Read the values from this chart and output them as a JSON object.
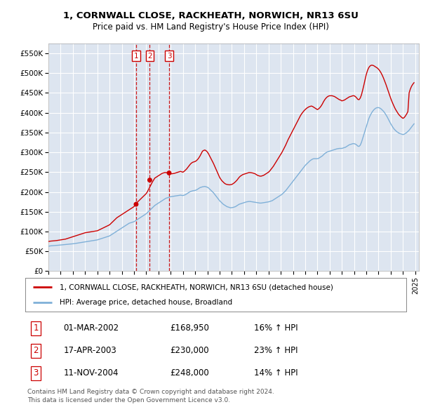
{
  "title_line1": "1, CORNWALL CLOSE, RACKHEATH, NORWICH, NR13 6SU",
  "title_line2": "Price paid vs. HM Land Registry's House Price Index (HPI)",
  "legend_label_red": "1, CORNWALL CLOSE, RACKHEATH, NORWICH, NR13 6SU (detached house)",
  "legend_label_blue": "HPI: Average price, detached house, Broadland",
  "footer_line1": "Contains HM Land Registry data © Crown copyright and database right 2024.",
  "footer_line2": "This data is licensed under the Open Government Licence v3.0.",
  "transactions": [
    {
      "num": 1,
      "date": "01-MAR-2002",
      "price": "£168,950",
      "hpi": "16% ↑ HPI",
      "x_year": 2002.17
    },
    {
      "num": 2,
      "date": "17-APR-2003",
      "price": "£230,000",
      "hpi": "23% ↑ HPI",
      "x_year": 2003.29
    },
    {
      "num": 3,
      "date": "11-NOV-2004",
      "price": "£248,000",
      "hpi": "14% ↑ HPI",
      "x_year": 2004.87
    }
  ],
  "transaction_marker_values": [
    168950,
    230000,
    248000
  ],
  "background_color": "#dde5f0",
  "red_color": "#cc0000",
  "blue_color": "#7fb0d8",
  "grid_color": "#ffffff",
  "ylim": [
    0,
    575000
  ],
  "xlim_start": 1995.0,
  "xlim_end": 2025.3,
  "ytick_values": [
    0,
    50000,
    100000,
    150000,
    200000,
    250000,
    300000,
    350000,
    400000,
    450000,
    500000,
    550000
  ],
  "ytick_labels": [
    "£0",
    "£50K",
    "£100K",
    "£150K",
    "£200K",
    "£250K",
    "£300K",
    "£350K",
    "£400K",
    "£450K",
    "£500K",
    "£550K"
  ],
  "xtick_years": [
    1995,
    1996,
    1997,
    1998,
    1999,
    2000,
    2001,
    2002,
    2003,
    2004,
    2005,
    2006,
    2007,
    2008,
    2009,
    2010,
    2011,
    2012,
    2013,
    2014,
    2015,
    2016,
    2017,
    2018,
    2019,
    2020,
    2021,
    2022,
    2023,
    2024,
    2025
  ],
  "hpi_blue": {
    "x": [
      1995.0,
      1995.1,
      1995.2,
      1995.3,
      1995.4,
      1995.5,
      1995.6,
      1995.7,
      1995.8,
      1995.9,
      1996.0,
      1996.1,
      1996.2,
      1996.3,
      1996.4,
      1996.5,
      1996.6,
      1996.7,
      1996.8,
      1996.9,
      1997.0,
      1997.1,
      1997.2,
      1997.3,
      1997.4,
      1997.5,
      1997.6,
      1997.7,
      1997.8,
      1997.9,
      1998.0,
      1998.1,
      1998.2,
      1998.3,
      1998.4,
      1998.5,
      1998.6,
      1998.7,
      1998.8,
      1998.9,
      1999.0,
      1999.1,
      1999.2,
      1999.3,
      1999.4,
      1999.5,
      1999.6,
      1999.7,
      1999.8,
      1999.9,
      2000.0,
      2000.1,
      2000.2,
      2000.3,
      2000.4,
      2000.5,
      2000.6,
      2000.7,
      2000.8,
      2000.9,
      2001.0,
      2001.1,
      2001.2,
      2001.3,
      2001.4,
      2001.5,
      2001.6,
      2001.7,
      2001.8,
      2001.9,
      2002.0,
      2002.1,
      2002.2,
      2002.3,
      2002.4,
      2002.5,
      2002.6,
      2002.7,
      2002.8,
      2002.9,
      2003.0,
      2003.1,
      2003.2,
      2003.3,
      2003.4,
      2003.5,
      2003.6,
      2003.7,
      2003.8,
      2003.9,
      2004.0,
      2004.1,
      2004.2,
      2004.3,
      2004.4,
      2004.5,
      2004.6,
      2004.7,
      2004.8,
      2004.9,
      2005.0,
      2005.1,
      2005.2,
      2005.3,
      2005.4,
      2005.5,
      2005.6,
      2005.7,
      2005.8,
      2005.9,
      2006.0,
      2006.1,
      2006.2,
      2006.3,
      2006.4,
      2006.5,
      2006.6,
      2006.7,
      2006.8,
      2006.9,
      2007.0,
      2007.1,
      2007.2,
      2007.3,
      2007.4,
      2007.5,
      2007.6,
      2007.7,
      2007.8,
      2007.9,
      2008.0,
      2008.1,
      2008.2,
      2008.3,
      2008.4,
      2008.5,
      2008.6,
      2008.7,
      2008.8,
      2008.9,
      2009.0,
      2009.1,
      2009.2,
      2009.3,
      2009.4,
      2009.5,
      2009.6,
      2009.7,
      2009.8,
      2009.9,
      2010.0,
      2010.1,
      2010.2,
      2010.3,
      2010.4,
      2010.5,
      2010.6,
      2010.7,
      2010.8,
      2010.9,
      2011.0,
      2011.1,
      2011.2,
      2011.3,
      2011.4,
      2011.5,
      2011.6,
      2011.7,
      2011.8,
      2011.9,
      2012.0,
      2012.1,
      2012.2,
      2012.3,
      2012.4,
      2012.5,
      2012.6,
      2012.7,
      2012.8,
      2012.9,
      2013.0,
      2013.1,
      2013.2,
      2013.3,
      2013.4,
      2013.5,
      2013.6,
      2013.7,
      2013.8,
      2013.9,
      2014.0,
      2014.1,
      2014.2,
      2014.3,
      2014.4,
      2014.5,
      2014.6,
      2014.7,
      2014.8,
      2014.9,
      2015.0,
      2015.1,
      2015.2,
      2015.3,
      2015.4,
      2015.5,
      2015.6,
      2015.7,
      2015.8,
      2015.9,
      2016.0,
      2016.1,
      2016.2,
      2016.3,
      2016.4,
      2016.5,
      2016.6,
      2016.7,
      2016.8,
      2016.9,
      2017.0,
      2017.1,
      2017.2,
      2017.3,
      2017.4,
      2017.5,
      2017.6,
      2017.7,
      2017.8,
      2017.9,
      2018.0,
      2018.1,
      2018.2,
      2018.3,
      2018.4,
      2018.5,
      2018.6,
      2018.7,
      2018.8,
      2018.9,
      2019.0,
      2019.1,
      2019.2,
      2019.3,
      2019.4,
      2019.5,
      2019.6,
      2019.7,
      2019.8,
      2019.9,
      2020.0,
      2020.1,
      2020.2,
      2020.3,
      2020.4,
      2020.5,
      2020.6,
      2020.7,
      2020.8,
      2020.9,
      2021.0,
      2021.1,
      2021.2,
      2021.3,
      2021.4,
      2021.5,
      2021.6,
      2021.7,
      2021.8,
      2021.9,
      2022.0,
      2022.1,
      2022.2,
      2022.3,
      2022.4,
      2022.5,
      2022.6,
      2022.7,
      2022.8,
      2022.9,
      2023.0,
      2023.1,
      2023.2,
      2023.3,
      2023.4,
      2023.5,
      2023.6,
      2023.7,
      2023.8,
      2023.9,
      2024.0,
      2024.1,
      2024.2,
      2024.3,
      2024.4,
      2024.5,
      2024.6,
      2024.7,
      2024.8,
      2024.9
    ],
    "y": [
      63000,
      63500,
      64000,
      64200,
      64500,
      64800,
      65000,
      65200,
      65500,
      65800,
      66000,
      66300,
      66600,
      66900,
      67200,
      67500,
      67800,
      68100,
      68400,
      68700,
      69000,
      69500,
      70000,
      70500,
      71000,
      71500,
      72000,
      72500,
      73000,
      73500,
      74000,
      74500,
      75000,
      75500,
      76000,
      76500,
      77000,
      77500,
      78000,
      78500,
      79000,
      80000,
      81000,
      82000,
      83000,
      84000,
      85000,
      86000,
      87000,
      88000,
      89000,
      91000,
      93000,
      95000,
      97000,
      99000,
      101000,
      103000,
      105000,
      107000,
      109000,
      111000,
      113000,
      115000,
      117000,
      119000,
      121000,
      122000,
      123000,
      124000,
      125000,
      127000,
      129000,
      131000,
      133000,
      135000,
      137000,
      139000,
      141000,
      143000,
      145000,
      148000,
      151000,
      154000,
      157000,
      160000,
      163000,
      166000,
      168000,
      170000,
      172000,
      174000,
      176000,
      178000,
      180000,
      182000,
      184000,
      185000,
      186000,
      187000,
      188000,
      188500,
      189000,
      189500,
      190000,
      190500,
      191000,
      191500,
      192000,
      191500,
      191000,
      192000,
      193000,
      195000,
      197000,
      199000,
      201000,
      202000,
      203000,
      203500,
      204000,
      205000,
      207000,
      209000,
      211000,
      212000,
      213000,
      213500,
      214000,
      213000,
      212000,
      210000,
      207000,
      204000,
      201000,
      198000,
      194000,
      190000,
      186000,
      182000,
      178000,
      175000,
      172000,
      169000,
      167000,
      165000,
      163000,
      162000,
      161000,
      160000,
      160500,
      161000,
      162000,
      163000,
      165000,
      167000,
      169000,
      170000,
      171000,
      172000,
      173000,
      174000,
      175000,
      175500,
      176000,
      176000,
      175500,
      175000,
      174500,
      174000,
      173500,
      173000,
      172500,
      172000,
      172000,
      172500,
      173000,
      173500,
      174000,
      174500,
      175000,
      176000,
      177000,
      178000,
      180000,
      182000,
      184000,
      186000,
      188000,
      190000,
      192000,
      194000,
      197000,
      200000,
      203000,
      207000,
      211000,
      215000,
      219000,
      223000,
      227000,
      231000,
      235000,
      239000,
      243000,
      247000,
      251000,
      255000,
      259000,
      263000,
      267000,
      270000,
      273000,
      276000,
      279000,
      281000,
      283000,
      284000,
      284000,
      284000,
      284000,
      285000,
      287000,
      289000,
      291000,
      294000,
      297000,
      299000,
      301000,
      302000,
      303000,
      304000,
      305000,
      306000,
      307000,
      308000,
      309000,
      309500,
      310000,
      310000,
      310000,
      311000,
      312000,
      313000,
      315000,
      317000,
      319000,
      320000,
      321000,
      322000,
      322000,
      321000,
      319000,
      316000,
      315000,
      318000,
      325000,
      335000,
      345000,
      355000,
      365000,
      375000,
      385000,
      392000,
      398000,
      403000,
      407000,
      410000,
      412000,
      413000,
      413000,
      412000,
      410000,
      407000,
      404000,
      400000,
      395000,
      390000,
      384000,
      378000,
      372000,
      367000,
      362000,
      358000,
      355000,
      352000,
      350000,
      348000,
      347000,
      346000,
      345000,
      346000,
      348000,
      350000,
      353000,
      356000,
      360000,
      364000,
      368000,
      372000
    ]
  },
  "hpi_red": {
    "x": [
      1995.0,
      1995.1,
      1995.2,
      1995.3,
      1995.4,
      1995.5,
      1995.6,
      1995.7,
      1995.8,
      1995.9,
      1996.0,
      1996.1,
      1996.2,
      1996.3,
      1996.4,
      1996.5,
      1996.6,
      1996.7,
      1996.8,
      1996.9,
      1997.0,
      1997.1,
      1997.2,
      1997.3,
      1997.4,
      1997.5,
      1997.6,
      1997.7,
      1997.8,
      1997.9,
      1998.0,
      1998.1,
      1998.2,
      1998.3,
      1998.4,
      1998.5,
      1998.6,
      1998.7,
      1998.8,
      1998.9,
      1999.0,
      1999.1,
      1999.2,
      1999.3,
      1999.4,
      1999.5,
      1999.6,
      1999.7,
      1999.8,
      1999.9,
      2000.0,
      2000.1,
      2000.2,
      2000.3,
      2000.4,
      2000.5,
      2000.6,
      2000.7,
      2000.8,
      2000.9,
      2001.0,
      2001.1,
      2001.2,
      2001.3,
      2001.4,
      2001.5,
      2001.6,
      2001.7,
      2001.8,
      2001.9,
      2002.0,
      2002.1,
      2002.2,
      2002.3,
      2002.4,
      2002.5,
      2002.6,
      2002.7,
      2002.8,
      2002.9,
      2003.0,
      2003.1,
      2003.2,
      2003.3,
      2003.4,
      2003.5,
      2003.6,
      2003.7,
      2003.8,
      2003.9,
      2004.0,
      2004.1,
      2004.2,
      2004.3,
      2004.4,
      2004.5,
      2004.6,
      2004.7,
      2004.8,
      2004.9,
      2005.0,
      2005.1,
      2005.2,
      2005.3,
      2005.4,
      2005.5,
      2005.6,
      2005.7,
      2005.8,
      2005.9,
      2006.0,
      2006.1,
      2006.2,
      2006.3,
      2006.4,
      2006.5,
      2006.6,
      2006.7,
      2006.8,
      2006.9,
      2007.0,
      2007.1,
      2007.2,
      2007.3,
      2007.4,
      2007.5,
      2007.6,
      2007.7,
      2007.8,
      2007.9,
      2008.0,
      2008.1,
      2008.2,
      2008.3,
      2008.4,
      2008.5,
      2008.6,
      2008.7,
      2008.8,
      2008.9,
      2009.0,
      2009.1,
      2009.2,
      2009.3,
      2009.4,
      2009.5,
      2009.6,
      2009.7,
      2009.8,
      2009.9,
      2010.0,
      2010.1,
      2010.2,
      2010.3,
      2010.4,
      2010.5,
      2010.6,
      2010.7,
      2010.8,
      2010.9,
      2011.0,
      2011.1,
      2011.2,
      2011.3,
      2011.4,
      2011.5,
      2011.6,
      2011.7,
      2011.8,
      2011.9,
      2012.0,
      2012.1,
      2012.2,
      2012.3,
      2012.4,
      2012.5,
      2012.6,
      2012.7,
      2012.8,
      2012.9,
      2013.0,
      2013.1,
      2013.2,
      2013.3,
      2013.4,
      2013.5,
      2013.6,
      2013.7,
      2013.8,
      2013.9,
      2014.0,
      2014.1,
      2014.2,
      2014.3,
      2014.4,
      2014.5,
      2014.6,
      2014.7,
      2014.8,
      2014.9,
      2015.0,
      2015.1,
      2015.2,
      2015.3,
      2015.4,
      2015.5,
      2015.6,
      2015.7,
      2015.8,
      2015.9,
      2016.0,
      2016.1,
      2016.2,
      2016.3,
      2016.4,
      2016.5,
      2016.6,
      2016.7,
      2016.8,
      2016.9,
      2017.0,
      2017.1,
      2017.2,
      2017.3,
      2017.4,
      2017.5,
      2017.6,
      2017.7,
      2017.8,
      2017.9,
      2018.0,
      2018.1,
      2018.2,
      2018.3,
      2018.4,
      2018.5,
      2018.6,
      2018.7,
      2018.8,
      2018.9,
      2019.0,
      2019.1,
      2019.2,
      2019.3,
      2019.4,
      2019.5,
      2019.6,
      2019.7,
      2019.8,
      2019.9,
      2020.0,
      2020.1,
      2020.2,
      2020.3,
      2020.4,
      2020.5,
      2020.6,
      2020.7,
      2020.8,
      2020.9,
      2021.0,
      2021.1,
      2021.2,
      2021.3,
      2021.4,
      2021.5,
      2021.6,
      2021.7,
      2021.8,
      2021.9,
      2022.0,
      2022.1,
      2022.2,
      2022.3,
      2022.4,
      2022.5,
      2022.6,
      2022.7,
      2022.8,
      2022.9,
      2023.0,
      2023.1,
      2023.2,
      2023.3,
      2023.4,
      2023.5,
      2023.6,
      2023.7,
      2023.8,
      2023.9,
      2024.0,
      2024.1,
      2024.2,
      2024.3,
      2024.4,
      2024.5,
      2024.6,
      2024.7,
      2024.8,
      2024.9
    ],
    "y": [
      75000,
      75500,
      76000,
      76200,
      76500,
      76800,
      77000,
      77500,
      78000,
      78500,
      79000,
      79500,
      80000,
      80500,
      81000,
      82000,
      83000,
      84000,
      85000,
      86000,
      87000,
      88000,
      89000,
      90000,
      91000,
      92000,
      93000,
      94000,
      95000,
      96000,
      97000,
      97500,
      98000,
      98500,
      99000,
      99500,
      100000,
      100500,
      101000,
      101500,
      102000,
      103500,
      105000,
      106500,
      108000,
      109500,
      111000,
      112500,
      114000,
      115500,
      117000,
      120000,
      123000,
      126000,
      129000,
      132000,
      135000,
      137000,
      139000,
      141000,
      143000,
      145000,
      147000,
      149000,
      151000,
      153000,
      155000,
      157000,
      159000,
      161000,
      163000,
      168950,
      172000,
      175000,
      178000,
      181000,
      184000,
      187000,
      190000,
      193000,
      196000,
      201000,
      207000,
      213000,
      219000,
      225000,
      230000,
      235000,
      237000,
      239000,
      241000,
      243000,
      245000,
      247000,
      248000,
      249000,
      249000,
      248500,
      248000,
      247000,
      246000,
      246000,
      246500,
      247000,
      248000,
      249000,
      250000,
      251000,
      252000,
      251000,
      250000,
      252000,
      255000,
      258000,
      262000,
      266000,
      270000,
      273000,
      275000,
      276000,
      277000,
      279000,
      282000,
      286000,
      291000,
      297000,
      303000,
      305000,
      306000,
      304000,
      301000,
      296000,
      290000,
      284000,
      278000,
      272000,
      265000,
      258000,
      251000,
      244000,
      237000,
      232000,
      228000,
      225000,
      222000,
      220000,
      219000,
      218500,
      218000,
      218500,
      219000,
      221000,
      223000,
      226000,
      229000,
      233000,
      237000,
      240000,
      242000,
      244000,
      245000,
      246000,
      247000,
      248000,
      249000,
      249000,
      248500,
      248000,
      247000,
      246000,
      244000,
      242000,
      241000,
      240000,
      240000,
      241000,
      242000,
      244000,
      246000,
      248000,
      250000,
      253000,
      257000,
      261000,
      265000,
      270000,
      275000,
      280000,
      285000,
      290000,
      295000,
      300000,
      306000,
      312000,
      318000,
      325000,
      332000,
      338000,
      344000,
      350000,
      356000,
      362000,
      368000,
      374000,
      380000,
      386000,
      392000,
      397000,
      401000,
      405000,
      408000,
      411000,
      413000,
      415000,
      416000,
      417000,
      416000,
      414000,
      412000,
      410000,
      408000,
      410000,
      413000,
      417000,
      422000,
      428000,
      433000,
      437000,
      440000,
      442000,
      443000,
      443000,
      443000,
      442000,
      441000,
      439000,
      437000,
      435000,
      433000,
      432000,
      430000,
      431000,
      432000,
      434000,
      436000,
      438000,
      440000,
      441000,
      442000,
      443000,
      443000,
      441000,
      438000,
      434000,
      433000,
      437000,
      445000,
      457000,
      470000,
      484000,
      497000,
      507000,
      514000,
      518000,
      520000,
      520000,
      519000,
      517000,
      515000,
      513000,
      510000,
      506000,
      501000,
      495000,
      488000,
      480000,
      472000,
      463000,
      454000,
      445000,
      436000,
      428000,
      421000,
      414000,
      408000,
      403000,
      398000,
      394000,
      391000,
      388000,
      386000,
      388000,
      392000,
      397000,
      403000,
      450000,
      460000,
      467000,
      472000,
      476000
    ]
  }
}
